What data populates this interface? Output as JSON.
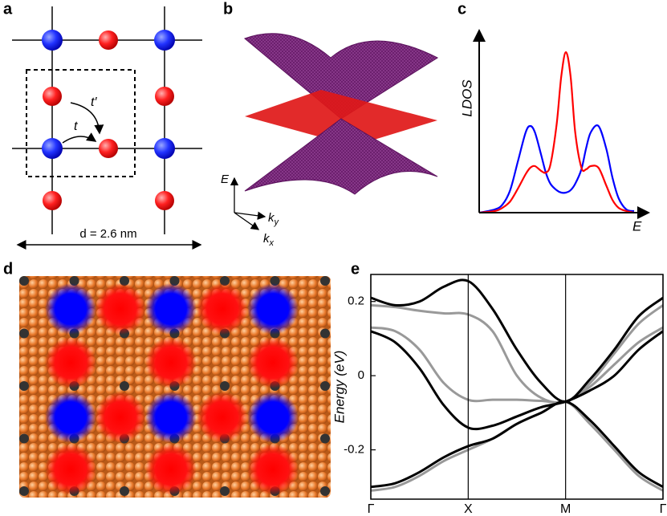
{
  "panels": {
    "a": {
      "label": "a",
      "t_prime": "t′",
      "t": "t",
      "scale": "d = 2.6 nm"
    },
    "b": {
      "label": "b",
      "energy": "E",
      "ky": {
        "k": "k",
        "sub": "y"
      },
      "kx": {
        "k": "k",
        "sub": "x"
      }
    },
    "d": {
      "label": "d"
    }
  },
  "chart_data": [
    {
      "type": "line",
      "panel": "c",
      "x_label": "E",
      "y_label": "LDOS",
      "x": [
        0,
        1,
        1.5,
        2,
        2.5,
        3,
        3.3,
        3.6,
        4,
        4.3,
        4.6,
        5,
        5.3,
        5.6,
        5.9,
        6.2,
        6.6,
        6.9,
        7.2,
        7.7,
        8.2,
        8.6,
        9,
        9.5,
        10
      ],
      "xlim": [
        0,
        10
      ],
      "ylim": [
        0,
        1.125
      ],
      "series": [
        {
          "color": "#0000ff",
          "values": [
            0,
            0.02,
            0.05,
            0.14,
            0.32,
            0.5,
            0.54,
            0.5,
            0.36,
            0.25,
            0.18,
            0.14,
            0.125,
            0.125,
            0.14,
            0.18,
            0.27,
            0.4,
            0.5,
            0.54,
            0.4,
            0.22,
            0.09,
            0.02,
            0.01
          ]
        },
        {
          "color": "#ff0000",
          "values": [
            0,
            0.01,
            0.03,
            0.07,
            0.15,
            0.24,
            0.28,
            0.29,
            0.26,
            0.25,
            0.3,
            0.55,
            0.85,
            1.0,
            0.85,
            0.5,
            0.28,
            0.27,
            0.29,
            0.28,
            0.17,
            0.08,
            0.03,
            0.01,
            0
          ]
        }
      ]
    },
    {
      "type": "line",
      "panel": "e",
      "y_label": "Energy (eV)",
      "x": [
        0,
        0.25,
        0.5,
        0.75,
        1,
        1.25,
        1.5,
        1.75,
        2,
        2.25,
        2.5,
        2.75,
        3
      ],
      "xlim": [
        0,
        3
      ],
      "ylim": [
        -0.333,
        0.273
      ],
      "xticks": [
        {
          "value": 0,
          "label": "Γ"
        },
        {
          "value": 1,
          "label": "X"
        },
        {
          "value": 2,
          "label": "M"
        },
        {
          "value": 3,
          "label": "Γ"
        }
      ],
      "yticks": [
        0.2,
        0,
        -0.2
      ],
      "series": [
        {
          "color": "#999999",
          "values": [
            0.19,
            0.185,
            0.175,
            0.168,
            0.165,
            0.12,
            0.0,
            -0.06,
            -0.07,
            -0.02,
            0.06,
            0.14,
            0.19
          ]
        },
        {
          "color": "#999999",
          "values": [
            0.13,
            0.12,
            0.07,
            -0.02,
            -0.065,
            -0.065,
            -0.065,
            -0.068,
            -0.07,
            -0.03,
            0.03,
            0.09,
            0.13
          ]
        },
        {
          "color": "#999999",
          "values": [
            -0.31,
            -0.3,
            -0.27,
            -0.23,
            -0.2,
            -0.17,
            -0.13,
            -0.1,
            -0.07,
            -0.13,
            -0.2,
            -0.27,
            -0.31
          ]
        },
        {
          "color": "#000000",
          "values": [
            0.21,
            0.19,
            0.2,
            0.24,
            0.255,
            0.18,
            0.07,
            -0.02,
            -0.07,
            -0.01,
            0.07,
            0.16,
            0.21
          ]
        },
        {
          "color": "#000000",
          "values": [
            0.12,
            0.09,
            0.02,
            -0.08,
            -0.14,
            -0.135,
            -0.11,
            -0.085,
            -0.07,
            -0.04,
            0.0,
            0.07,
            0.12
          ]
        },
        {
          "color": "#000000",
          "values": [
            -0.3,
            -0.29,
            -0.26,
            -0.22,
            -0.19,
            -0.17,
            -0.13,
            -0.1,
            -0.07,
            -0.12,
            -0.19,
            -0.26,
            -0.3
          ]
        }
      ]
    }
  ]
}
